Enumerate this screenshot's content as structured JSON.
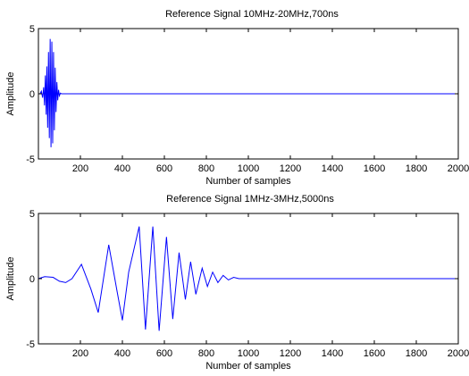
{
  "chart_data": [
    {
      "type": "line",
      "title": "Reference Signal 10MHz-20MHz,700ns",
      "xlabel": "Number of samples",
      "ylabel": "Amplitude",
      "xlim": [
        0,
        2000
      ],
      "ylim": [
        -5,
        5
      ],
      "xticks": [
        200,
        400,
        600,
        800,
        1000,
        1200,
        1400,
        1600,
        1800,
        2000
      ],
      "yticks": [
        -5,
        0,
        5
      ],
      "grid": false,
      "line_color": "#0000ff",
      "series": [
        {
          "x": [
            0,
            8,
            14,
            20,
            25,
            29,
            33,
            37,
            40,
            44,
            48,
            52,
            56,
            60,
            64,
            68,
            72,
            76,
            80,
            84,
            88,
            92,
            96,
            100,
            105,
            110,
            115,
            120,
            2000
          ],
          "y": [
            0,
            0,
            0.2,
            -0.3,
            0.5,
            -0.9,
            1.4,
            -1.6,
            2.1,
            -2.6,
            3.2,
            -3.4,
            4.2,
            -4.1,
            4.0,
            -3.8,
            3.2,
            -2.8,
            2.0,
            -1.4,
            0.9,
            -0.5,
            0.3,
            -0.15,
            0.05,
            0,
            0,
            0,
            0
          ]
        }
      ]
    },
    {
      "type": "line",
      "title": "Reference Signal 1MHz-3MHz,5000ns",
      "xlabel": "Number of samples",
      "ylabel": "Amplitude",
      "xlim": [
        0,
        2000
      ],
      "ylim": [
        -5,
        5
      ],
      "xticks": [
        200,
        400,
        600,
        800,
        1000,
        1200,
        1400,
        1600,
        1800,
        2000
      ],
      "yticks": [
        -5,
        0,
        5
      ],
      "grid": false,
      "line_color": "#0000ff",
      "series": [
        {
          "x": [
            0,
            30,
            70,
            100,
            130,
            160,
            205,
            250,
            285,
            335,
            375,
            400,
            430,
            480,
            510,
            545,
            575,
            610,
            640,
            670,
            700,
            725,
            750,
            780,
            805,
            830,
            855,
            880,
            905,
            930,
            955,
            1000,
            2000
          ],
          "y": [
            0,
            0.15,
            0.1,
            -0.2,
            -0.3,
            0,
            1.1,
            -0.8,
            -2.6,
            2.6,
            -1.0,
            -3.2,
            0.5,
            4.0,
            -3.9,
            4.0,
            -4.0,
            3.2,
            -3.1,
            2.0,
            -1.6,
            1.3,
            -1.2,
            0.8,
            -0.6,
            0.5,
            -0.3,
            0.25,
            -0.1,
            0.1,
            0,
            0,
            0
          ]
        }
      ]
    }
  ]
}
